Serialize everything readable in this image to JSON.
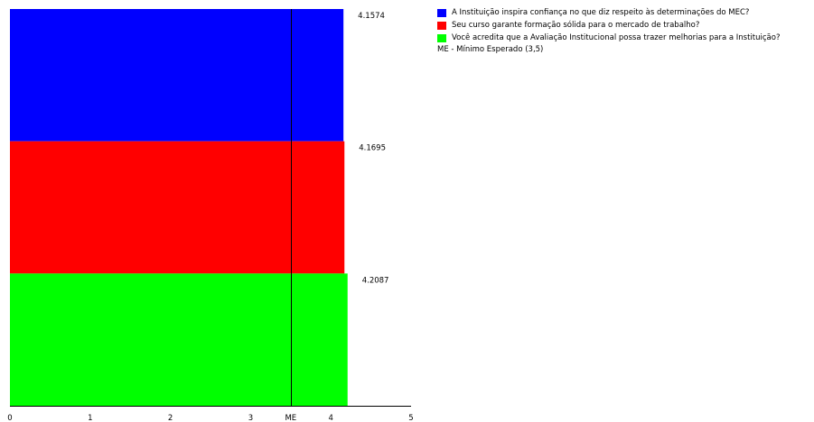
{
  "chart_data": {
    "type": "bar",
    "orientation": "horizontal",
    "series": [
      {
        "name": "A Instituição inspira confiança no que diz respeito às determinações do MEC?",
        "value": 4.1574,
        "color": "#0000ff"
      },
      {
        "name": "Seu curso garante formação sólida para o mercado de trabalho?",
        "value": 4.1695,
        "color": "#ff0000"
      },
      {
        "name": "Você acredita que a Avaliação Institucional possa trazer melhorias para a Instituição?",
        "value": 4.2087,
        "color": "#00ff00"
      }
    ],
    "value_labels": [
      "4.1574",
      "4.1695",
      "4.2087"
    ],
    "xlim": [
      0,
      5
    ],
    "x_ticks": [
      "0",
      "1",
      "2",
      "3",
      "ME",
      "4",
      "5"
    ],
    "reference_line": {
      "label": "ME",
      "value": 3.5
    },
    "legend_note": "ME - Mínimo Esperado (3,5)",
    "grid": false,
    "legend_position": "top-right"
  }
}
